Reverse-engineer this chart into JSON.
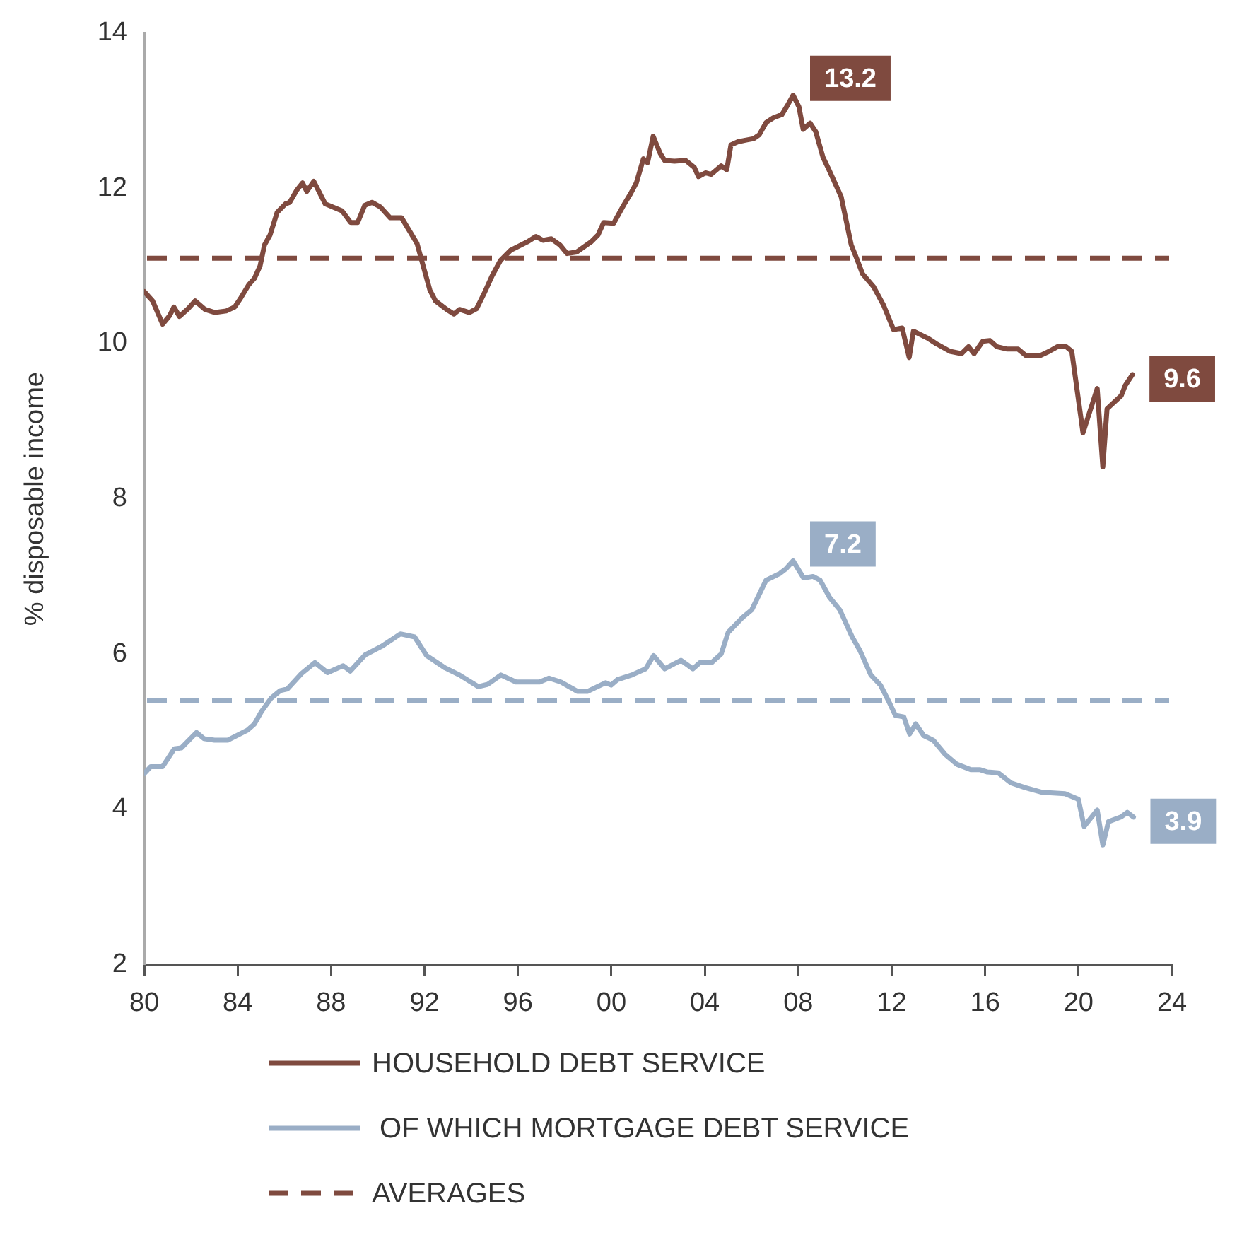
{
  "chart_data": {
    "type": "line",
    "ylabel": "% disposable income",
    "xlim": [
      1980,
      2024
    ],
    "xticks": [
      {
        "value": 1980,
        "label": "80"
      },
      {
        "value": 1984,
        "label": "84"
      },
      {
        "value": 1988,
        "label": "88"
      },
      {
        "value": 1992,
        "label": "92"
      },
      {
        "value": 1996,
        "label": "96"
      },
      {
        "value": 2000,
        "label": "00"
      },
      {
        "value": 2004,
        "label": "04"
      },
      {
        "value": 2008,
        "label": "08"
      },
      {
        "value": 2012,
        "label": "12"
      },
      {
        "value": 2016,
        "label": "16"
      },
      {
        "value": 2020,
        "label": "20"
      },
      {
        "value": 2024,
        "label": "24"
      }
    ],
    "ylim": [
      2,
      14
    ],
    "yticks": [
      2,
      4,
      6,
      8,
      10,
      12,
      14
    ],
    "grid": false,
    "legend": "bottom",
    "marker": "none",
    "line_style": "solid",
    "series": [
      {
        "name": "HOUSEHOLD DEBT SERVICE",
        "color": "#7f4a3f",
        "x": [
          1980.0,
          1980.36,
          1980.79,
          1981.09,
          1981.27,
          1981.51,
          1981.88,
          1982.18,
          1982.6,
          1983.03,
          1983.51,
          1983.87,
          1984.12,
          1984.48,
          1984.72,
          1984.96,
          1985.15,
          1985.39,
          1985.69,
          1986.05,
          1986.23,
          1986.54,
          1986.78,
          1986.96,
          1987.26,
          1987.75,
          1988.47,
          1988.84,
          1989.14,
          1989.44,
          1989.75,
          1990.11,
          1990.53,
          1991.02,
          1991.38,
          1991.68,
          1991.99,
          1992.23,
          1992.47,
          1992.95,
          1993.26,
          1993.5,
          1993.92,
          1994.23,
          1994.59,
          1994.89,
          1995.25,
          1995.68,
          1996.4,
          1996.77,
          1997.07,
          1997.43,
          1997.8,
          1998.1,
          1998.52,
          1999.13,
          1999.43,
          1999.67,
          2000.1,
          2000.52,
          2000.82,
          2001.07,
          2001.37,
          2001.55,
          2001.79,
          2002.09,
          2002.28,
          2002.7,
          2003.18,
          2003.55,
          2003.73,
          2004.03,
          2004.27,
          2004.7,
          2004.94,
          2005.12,
          2005.42,
          2005.73,
          2006.09,
          2006.33,
          2006.63,
          2006.94,
          2007.3,
          2007.54,
          2007.78,
          2008.03,
          2008.21,
          2008.51,
          2008.75,
          2009.06,
          2009.3,
          2009.84,
          2010.27,
          2010.51,
          2010.75,
          2011.23,
          2011.66,
          2012.08,
          2012.45,
          2012.75,
          2012.93,
          2013.54,
          2013.9,
          2014.5,
          2014.99,
          2015.29,
          2015.53,
          2015.9,
          2016.2,
          2016.5,
          2016.92,
          2017.41,
          2017.77,
          2018.32,
          2018.74,
          2019.1,
          2019.47,
          2019.71,
          2020.19,
          2020.8,
          2021.04,
          2021.22,
          2021.83,
          2022.0,
          2022.31
        ],
        "values": [
          10.67,
          10.55,
          10.25,
          10.36,
          10.47,
          10.35,
          10.45,
          10.55,
          10.44,
          10.4,
          10.42,
          10.47,
          10.58,
          10.76,
          10.84,
          11.0,
          11.27,
          11.4,
          11.69,
          11.8,
          11.82,
          11.98,
          12.07,
          11.96,
          12.09,
          11.8,
          11.71,
          11.56,
          11.56,
          11.78,
          11.82,
          11.76,
          11.62,
          11.62,
          11.44,
          11.29,
          10.95,
          10.69,
          10.55,
          10.44,
          10.38,
          10.44,
          10.4,
          10.45,
          10.67,
          10.87,
          11.07,
          11.2,
          11.31,
          11.38,
          11.33,
          11.35,
          11.27,
          11.16,
          11.18,
          11.31,
          11.4,
          11.56,
          11.55,
          11.78,
          11.93,
          12.07,
          12.38,
          12.33,
          12.67,
          12.45,
          12.36,
          12.35,
          12.36,
          12.27,
          12.15,
          12.2,
          12.18,
          12.29,
          12.24,
          12.56,
          12.6,
          12.62,
          12.64,
          12.69,
          12.85,
          12.91,
          12.95,
          13.07,
          13.2,
          13.05,
          12.76,
          12.84,
          12.73,
          12.4,
          12.25,
          11.89,
          11.27,
          11.09,
          10.9,
          10.73,
          10.49,
          10.18,
          10.2,
          9.82,
          10.16,
          10.07,
          10.0,
          9.9,
          9.87,
          9.96,
          9.87,
          10.03,
          10.04,
          9.96,
          9.93,
          9.93,
          9.84,
          9.84,
          9.9,
          9.96,
          9.96,
          9.9,
          8.85,
          9.42,
          8.41,
          9.16,
          9.33,
          9.46,
          9.6
        ],
        "value_labels": [
          null,
          null,
          null,
          null,
          null,
          null,
          null,
          null,
          null,
          null,
          null,
          null,
          null,
          null,
          null,
          null,
          null,
          null,
          null,
          null,
          null,
          null,
          null,
          null,
          null,
          null,
          null,
          null,
          null,
          null,
          null,
          null,
          null,
          null,
          null,
          null,
          null,
          null,
          null,
          null,
          null,
          null,
          null,
          null,
          null,
          null,
          null,
          null,
          null,
          null,
          null,
          null,
          null,
          null,
          null,
          null,
          null,
          null,
          null,
          null,
          null,
          null,
          null,
          null,
          null,
          null,
          null,
          null,
          null,
          null,
          null,
          null,
          null,
          null,
          null,
          null,
          null,
          null,
          null,
          null,
          null,
          null,
          null,
          null,
          "13.2",
          null,
          null,
          null,
          null,
          null,
          null,
          null,
          null,
          null,
          null,
          null,
          null,
          null,
          null,
          null,
          null,
          null,
          null,
          null,
          null,
          null,
          null,
          null,
          null,
          null,
          null,
          null,
          null,
          null,
          null,
          null,
          null,
          null,
          null,
          null,
          null,
          null,
          null,
          null,
          "9.6"
        ]
      },
      {
        "name": " OF WHICH MORTGAGE DEBT SERVICE",
        "color": "#9aaec6",
        "x": [
          1980.0,
          1980.28,
          1980.79,
          1981.29,
          1981.59,
          1982.24,
          1982.56,
          1983.01,
          1983.57,
          1984.42,
          1984.72,
          1985.02,
          1985.43,
          1985.83,
          1986.13,
          1986.74,
          1987.31,
          1987.85,
          1988.52,
          1988.82,
          1989.46,
          1990.17,
          1990.97,
          1991.58,
          1992.09,
          1992.89,
          1993.5,
          1994.3,
          1994.71,
          1995.27,
          1995.92,
          1996.93,
          1997.33,
          1997.84,
          1998.54,
          1998.99,
          1999.75,
          1999.99,
          2000.26,
          2000.87,
          2001.47,
          2001.81,
          2002.28,
          2002.98,
          2003.49,
          2003.79,
          2004.29,
          2004.7,
          2005.0,
          2005.61,
          2006.01,
          2006.62,
          2007.22,
          2007.48,
          2007.78,
          2008.23,
          2008.63,
          2008.94,
          2009.34,
          2009.78,
          2010.31,
          2010.65,
          2011.11,
          2011.52,
          2011.86,
          2012.16,
          2012.52,
          2012.77,
          2013.03,
          2013.37,
          2013.78,
          2014.28,
          2014.79,
          2015.39,
          2015.79,
          2016.1,
          2016.56,
          2017.11,
          2017.71,
          2018.42,
          2019.42,
          2019.99,
          2020.24,
          2020.8,
          2021.04,
          2021.28,
          2021.81,
          2022.09,
          2022.35
        ],
        "values": [
          4.46,
          4.55,
          4.55,
          4.78,
          4.79,
          4.99,
          4.91,
          4.89,
          4.89,
          5.02,
          5.1,
          5.26,
          5.43,
          5.53,
          5.55,
          5.75,
          5.89,
          5.76,
          5.85,
          5.78,
          5.99,
          6.1,
          6.26,
          6.22,
          5.98,
          5.82,
          5.73,
          5.58,
          5.61,
          5.73,
          5.64,
          5.64,
          5.69,
          5.64,
          5.52,
          5.52,
          5.63,
          5.6,
          5.67,
          5.73,
          5.81,
          5.98,
          5.81,
          5.92,
          5.81,
          5.89,
          5.89,
          6.0,
          6.28,
          6.47,
          6.57,
          6.95,
          7.04,
          7.1,
          7.2,
          6.98,
          7.0,
          6.95,
          6.73,
          6.57,
          6.22,
          6.04,
          5.73,
          5.6,
          5.4,
          5.21,
          5.19,
          4.97,
          5.1,
          4.95,
          4.89,
          4.71,
          4.58,
          4.51,
          4.51,
          4.48,
          4.47,
          4.34,
          4.28,
          4.22,
          4.2,
          4.13,
          3.78,
          3.99,
          3.54,
          3.84,
          3.9,
          3.96,
          3.9
        ],
        "value_labels": [
          null,
          null,
          null,
          null,
          null,
          null,
          null,
          null,
          null,
          null,
          null,
          null,
          null,
          null,
          null,
          null,
          null,
          null,
          null,
          null,
          null,
          null,
          null,
          null,
          null,
          null,
          null,
          null,
          null,
          null,
          null,
          null,
          null,
          null,
          null,
          null,
          null,
          null,
          null,
          null,
          null,
          null,
          null,
          null,
          null,
          null,
          null,
          null,
          null,
          null,
          null,
          null,
          null,
          null,
          "7.2",
          null,
          null,
          null,
          null,
          null,
          null,
          null,
          null,
          null,
          null,
          null,
          null,
          null,
          null,
          null,
          null,
          null,
          null,
          null,
          null,
          null,
          null,
          null,
          null,
          null,
          null,
          null,
          null,
          null,
          null,
          null,
          null,
          null,
          "3.9"
        ]
      }
    ],
    "ref_lines": [
      {
        "axis": "y",
        "value": 11.1,
        "label": "AVERAGES",
        "color": "#7f4a3f",
        "line_style": "dashed"
      },
      {
        "axis": "y",
        "value": 5.4,
        "color": "#9aaec6",
        "line_style": "dashed"
      }
    ]
  }
}
